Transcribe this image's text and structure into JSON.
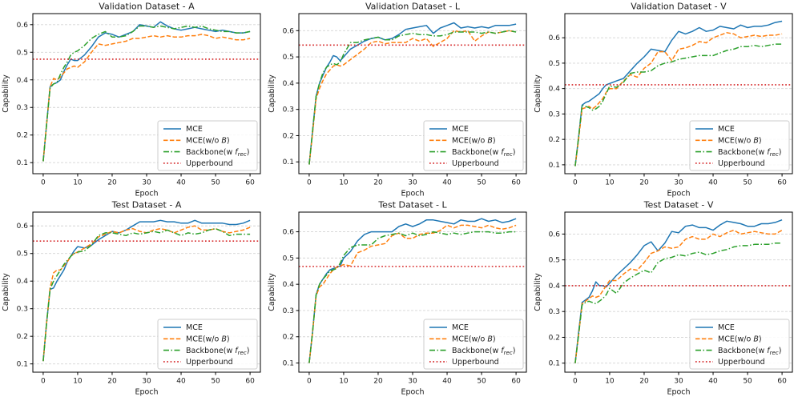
{
  "figure": {
    "background": "#ffffff",
    "columns": 3,
    "rows": 2
  },
  "colors": {
    "mce": "#1f77b4",
    "mce_wo_b": "#ff7f0e",
    "backbone": "#2ca02c",
    "upperbound": "#d62728",
    "grid": "#d4d4d4",
    "frame": "#000000",
    "text": "#1a1a1a",
    "legend_border": "#cccccc",
    "legend_bg": "#ffffff"
  },
  "legend": {
    "entries": [
      {
        "key": "mce",
        "label": "MCE",
        "style": "solid"
      },
      {
        "key": "mce_wo_b",
        "label": "MCE(w/o $B$)",
        "style": "dashed"
      },
      {
        "key": "backbone",
        "label": "Backbone(w $f_{rec}$)",
        "style": "dashdot"
      },
      {
        "key": "upperbound",
        "label": "Upperbound",
        "style": "dotted"
      }
    ]
  },
  "axes": {
    "xlabel": "Epoch",
    "ylabel": "Capability",
    "xticks": [
      0,
      10,
      20,
      30,
      40,
      50,
      60
    ],
    "yticks": [
      0.1,
      0.2,
      0.3,
      0.4,
      0.5,
      0.6
    ],
    "xlim": [
      -3,
      63
    ]
  },
  "chart_data": [
    {
      "type": "line",
      "id": "validation-a",
      "title": "Validation Dataset - A",
      "xlabel": "Epoch",
      "ylabel": "Capability",
      "ylim": [
        0.06,
        0.64
      ],
      "upperbound": 0.475,
      "x": [
        0,
        1,
        2,
        3,
        4,
        5,
        6,
        7,
        8,
        9,
        10,
        12,
        14,
        16,
        18,
        20,
        22,
        24,
        26,
        28,
        30,
        32,
        34,
        36,
        38,
        40,
        42,
        44,
        46,
        48,
        50,
        52,
        54,
        56,
        58,
        60
      ],
      "series": [
        {
          "name": "MCE",
          "color_key": "mce",
          "style": "solid",
          "values": [
            0.105,
            0.24,
            0.375,
            0.385,
            0.39,
            0.4,
            0.43,
            0.455,
            0.475,
            0.47,
            0.47,
            0.49,
            0.52,
            0.555,
            0.57,
            0.565,
            0.555,
            0.565,
            0.575,
            0.6,
            0.595,
            0.59,
            0.61,
            0.595,
            0.585,
            0.58,
            0.585,
            0.59,
            0.585,
            0.58,
            0.575,
            0.58,
            0.575,
            0.57,
            0.57,
            0.575
          ]
        },
        {
          "name": "MCE(w/o B)",
          "color_key": "mce_wo_b",
          "style": "dashed",
          "values": [
            0.105,
            0.24,
            0.375,
            0.405,
            0.4,
            0.41,
            0.425,
            0.44,
            0.445,
            0.45,
            0.445,
            0.465,
            0.5,
            0.53,
            0.525,
            0.53,
            0.535,
            0.54,
            0.55,
            0.55,
            0.555,
            0.56,
            0.555,
            0.56,
            0.555,
            0.555,
            0.56,
            0.56,
            0.565,
            0.56,
            0.55,
            0.555,
            0.55,
            0.545,
            0.545,
            0.55
          ]
        },
        {
          "name": "Backbone(w f_rec)",
          "color_key": "backbone",
          "style": "dashdot",
          "values": [
            0.105,
            0.24,
            0.37,
            0.385,
            0.39,
            0.42,
            0.445,
            0.465,
            0.49,
            0.5,
            0.505,
            0.525,
            0.55,
            0.565,
            0.575,
            0.555,
            0.555,
            0.56,
            0.575,
            0.595,
            0.595,
            0.59,
            0.595,
            0.59,
            0.585,
            0.59,
            0.595,
            0.59,
            0.595,
            0.585,
            0.58,
            0.575,
            0.575,
            0.57,
            0.57,
            0.575
          ]
        }
      ]
    },
    {
      "type": "line",
      "id": "validation-l",
      "title": "Validation Dataset - L",
      "xlabel": "Epoch",
      "ylabel": "Capability",
      "ylim": [
        0.055,
        0.665
      ],
      "upperbound": 0.545,
      "x": [
        0,
        1,
        2,
        3,
        4,
        5,
        6,
        7,
        8,
        9,
        10,
        12,
        14,
        16,
        18,
        20,
        22,
        24,
        26,
        28,
        30,
        32,
        34,
        36,
        38,
        40,
        42,
        44,
        46,
        48,
        50,
        52,
        54,
        56,
        58,
        60
      ],
      "series": [
        {
          "name": "MCE",
          "color_key": "mce",
          "style": "solid",
          "values": [
            0.09,
            0.22,
            0.35,
            0.4,
            0.43,
            0.46,
            0.48,
            0.505,
            0.5,
            0.485,
            0.5,
            0.53,
            0.545,
            0.56,
            0.57,
            0.575,
            0.565,
            0.57,
            0.585,
            0.605,
            0.61,
            0.615,
            0.62,
            0.59,
            0.61,
            0.62,
            0.63,
            0.61,
            0.615,
            0.61,
            0.615,
            0.61,
            0.62,
            0.62,
            0.62,
            0.625
          ]
        },
        {
          "name": "MCE(w/o B)",
          "color_key": "mce_wo_b",
          "style": "dashed",
          "values": [
            0.09,
            0.21,
            0.34,
            0.38,
            0.41,
            0.435,
            0.45,
            0.465,
            0.47,
            0.465,
            0.47,
            0.49,
            0.51,
            0.53,
            0.555,
            0.56,
            0.55,
            0.555,
            0.555,
            0.555,
            0.57,
            0.56,
            0.57,
            0.54,
            0.555,
            0.57,
            0.6,
            0.595,
            0.6,
            0.56,
            0.58,
            0.595,
            0.59,
            0.595,
            0.6,
            0.595
          ]
        },
        {
          "name": "Backbone(w f_rec)",
          "color_key": "backbone",
          "style": "dashdot",
          "values": [
            0.09,
            0.22,
            0.35,
            0.4,
            0.44,
            0.46,
            0.47,
            0.475,
            0.47,
            0.48,
            0.51,
            0.555,
            0.555,
            0.565,
            0.57,
            0.575,
            0.565,
            0.565,
            0.58,
            0.585,
            0.59,
            0.585,
            0.585,
            0.58,
            0.58,
            0.585,
            0.595,
            0.595,
            0.595,
            0.595,
            0.59,
            0.595,
            0.59,
            0.595,
            0.6,
            0.595
          ]
        }
      ]
    },
    {
      "type": "line",
      "id": "validation-v",
      "title": "Validation Dataset - V",
      "xlabel": "Epoch",
      "ylabel": "Capability",
      "ylim": [
        0.065,
        0.695
      ],
      "upperbound": 0.415,
      "x": [
        0,
        1,
        2,
        3,
        4,
        5,
        6,
        7,
        8,
        9,
        10,
        12,
        14,
        16,
        18,
        20,
        22,
        24,
        26,
        28,
        30,
        32,
        34,
        36,
        38,
        40,
        42,
        44,
        46,
        48,
        50,
        52,
        54,
        56,
        58,
        60
      ],
      "series": [
        {
          "name": "MCE",
          "color_key": "mce",
          "style": "solid",
          "values": [
            0.095,
            0.21,
            0.335,
            0.345,
            0.35,
            0.36,
            0.37,
            0.38,
            0.4,
            0.415,
            0.42,
            0.43,
            0.44,
            0.47,
            0.5,
            0.525,
            0.555,
            0.55,
            0.545,
            0.59,
            0.625,
            0.615,
            0.625,
            0.64,
            0.625,
            0.63,
            0.645,
            0.64,
            0.635,
            0.65,
            0.64,
            0.645,
            0.645,
            0.65,
            0.66,
            0.665
          ]
        },
        {
          "name": "MCE(w/o B)",
          "color_key": "mce_wo_b",
          "style": "dashed",
          "values": [
            0.095,
            0.2,
            0.32,
            0.325,
            0.33,
            0.32,
            0.33,
            0.345,
            0.36,
            0.385,
            0.4,
            0.4,
            0.43,
            0.455,
            0.445,
            0.48,
            0.5,
            0.545,
            0.545,
            0.51,
            0.555,
            0.56,
            0.57,
            0.585,
            0.58,
            0.6,
            0.61,
            0.62,
            0.615,
            0.6,
            0.605,
            0.61,
            0.605,
            0.61,
            0.61,
            0.615
          ]
        },
        {
          "name": "Backbone(w f_rec)",
          "color_key": "backbone",
          "style": "dashdot",
          "values": [
            0.095,
            0.21,
            0.335,
            0.33,
            0.325,
            0.315,
            0.32,
            0.33,
            0.35,
            0.38,
            0.41,
            0.405,
            0.425,
            0.46,
            0.465,
            0.465,
            0.47,
            0.49,
            0.5,
            0.505,
            0.515,
            0.52,
            0.525,
            0.53,
            0.53,
            0.53,
            0.54,
            0.55,
            0.555,
            0.565,
            0.565,
            0.57,
            0.565,
            0.57,
            0.575,
            0.575
          ]
        }
      ]
    },
    {
      "type": "line",
      "id": "test-a",
      "title": "Test Dataset - A",
      "xlabel": "Epoch",
      "ylabel": "Capability",
      "ylim": [
        0.07,
        0.65
      ],
      "upperbound": 0.545,
      "x": [
        0,
        1,
        2,
        3,
        4,
        5,
        6,
        7,
        8,
        9,
        10,
        12,
        14,
        16,
        18,
        20,
        22,
        24,
        26,
        28,
        30,
        32,
        34,
        36,
        38,
        40,
        42,
        44,
        46,
        48,
        50,
        52,
        54,
        56,
        58,
        60
      ],
      "series": [
        {
          "name": "MCE",
          "color_key": "mce",
          "style": "solid",
          "values": [
            0.11,
            0.25,
            0.37,
            0.375,
            0.4,
            0.42,
            0.44,
            0.47,
            0.49,
            0.51,
            0.525,
            0.52,
            0.53,
            0.55,
            0.565,
            0.58,
            0.575,
            0.585,
            0.6,
            0.615,
            0.615,
            0.615,
            0.62,
            0.615,
            0.615,
            0.61,
            0.61,
            0.62,
            0.61,
            0.61,
            0.61,
            0.61,
            0.605,
            0.605,
            0.61,
            0.62
          ]
        },
        {
          "name": "MCE(w/o B)",
          "color_key": "mce_wo_b",
          "style": "dashed",
          "values": [
            0.11,
            0.25,
            0.375,
            0.43,
            0.44,
            0.44,
            0.455,
            0.47,
            0.49,
            0.5,
            0.505,
            0.52,
            0.535,
            0.56,
            0.57,
            0.58,
            0.575,
            0.585,
            0.59,
            0.58,
            0.575,
            0.585,
            0.59,
            0.585,
            0.575,
            0.585,
            0.595,
            0.6,
            0.585,
            0.585,
            0.59,
            0.58,
            0.575,
            0.58,
            0.585,
            0.595
          ]
        },
        {
          "name": "Backbone(w f_rec)",
          "color_key": "backbone",
          "style": "dashdot",
          "values": [
            0.11,
            0.25,
            0.37,
            0.4,
            0.42,
            0.44,
            0.46,
            0.475,
            0.49,
            0.5,
            0.505,
            0.51,
            0.53,
            0.565,
            0.575,
            0.575,
            0.57,
            0.565,
            0.575,
            0.57,
            0.575,
            0.58,
            0.575,
            0.585,
            0.575,
            0.565,
            0.575,
            0.57,
            0.575,
            0.585,
            0.59,
            0.58,
            0.565,
            0.57,
            0.57,
            0.57
          ]
        }
      ]
    },
    {
      "type": "line",
      "id": "test-l",
      "title": "Test Dataset - L",
      "xlabel": "Epoch",
      "ylabel": "Capability",
      "ylim": [
        0.065,
        0.675
      ],
      "upperbound": 0.468,
      "x": [
        0,
        1,
        2,
        3,
        4,
        5,
        6,
        7,
        8,
        9,
        10,
        12,
        14,
        16,
        18,
        20,
        22,
        24,
        26,
        28,
        30,
        32,
        34,
        36,
        38,
        40,
        42,
        44,
        46,
        48,
        50,
        52,
        54,
        56,
        58,
        60
      ],
      "series": [
        {
          "name": "MCE",
          "color_key": "mce",
          "style": "solid",
          "values": [
            0.1,
            0.22,
            0.36,
            0.4,
            0.42,
            0.44,
            0.455,
            0.46,
            0.465,
            0.47,
            0.5,
            0.525,
            0.565,
            0.59,
            0.6,
            0.6,
            0.6,
            0.6,
            0.62,
            0.63,
            0.62,
            0.63,
            0.645,
            0.645,
            0.64,
            0.635,
            0.63,
            0.645,
            0.64,
            0.64,
            0.65,
            0.64,
            0.645,
            0.635,
            0.64,
            0.65
          ]
        },
        {
          "name": "MCE(w/o B)",
          "color_key": "mce_wo_b",
          "style": "dashed",
          "values": [
            0.1,
            0.22,
            0.355,
            0.39,
            0.4,
            0.42,
            0.44,
            0.455,
            0.465,
            0.47,
            0.475,
            0.47,
            0.52,
            0.53,
            0.545,
            0.55,
            0.555,
            0.585,
            0.595,
            0.575,
            0.575,
            0.59,
            0.595,
            0.595,
            0.605,
            0.625,
            0.615,
            0.625,
            0.625,
            0.62,
            0.615,
            0.625,
            0.615,
            0.61,
            0.615,
            0.625
          ]
        },
        {
          "name": "Backbone(w f_rec)",
          "color_key": "backbone",
          "style": "dashdot",
          "values": [
            0.1,
            0.22,
            0.36,
            0.4,
            0.42,
            0.435,
            0.45,
            0.455,
            0.46,
            0.48,
            0.51,
            0.54,
            0.55,
            0.55,
            0.55,
            0.575,
            0.585,
            0.59,
            0.595,
            0.585,
            0.595,
            0.585,
            0.59,
            0.6,
            0.595,
            0.59,
            0.595,
            0.59,
            0.595,
            0.6,
            0.6,
            0.6,
            0.595,
            0.595,
            0.6,
            0.6
          ]
        }
      ]
    },
    {
      "type": "line",
      "id": "test-v",
      "title": "Test Dataset - V",
      "xlabel": "Epoch",
      "ylabel": "Capability",
      "ylim": [
        0.065,
        0.685
      ],
      "upperbound": 0.4,
      "x": [
        0,
        1,
        2,
        3,
        4,
        5,
        6,
        7,
        8,
        9,
        10,
        12,
        14,
        16,
        18,
        20,
        22,
        24,
        26,
        28,
        30,
        32,
        34,
        36,
        38,
        40,
        42,
        44,
        46,
        48,
        50,
        52,
        54,
        56,
        58,
        60
      ],
      "series": [
        {
          "name": "MCE",
          "color_key": "mce",
          "style": "solid",
          "values": [
            0.1,
            0.22,
            0.335,
            0.345,
            0.355,
            0.38,
            0.415,
            0.4,
            0.4,
            0.395,
            0.41,
            0.44,
            0.465,
            0.49,
            0.52,
            0.555,
            0.57,
            0.535,
            0.565,
            0.61,
            0.605,
            0.63,
            0.635,
            0.625,
            0.625,
            0.615,
            0.635,
            0.65,
            0.645,
            0.64,
            0.63,
            0.63,
            0.64,
            0.64,
            0.645,
            0.655
          ]
        },
        {
          "name": "MCE(w/o B)",
          "color_key": "mce_wo_b",
          "style": "dashed",
          "values": [
            0.1,
            0.21,
            0.33,
            0.34,
            0.35,
            0.36,
            0.355,
            0.36,
            0.38,
            0.4,
            0.42,
            0.42,
            0.445,
            0.465,
            0.46,
            0.49,
            0.525,
            0.535,
            0.55,
            0.545,
            0.55,
            0.58,
            0.59,
            0.58,
            0.58,
            0.6,
            0.59,
            0.605,
            0.615,
            0.6,
            0.605,
            0.61,
            0.605,
            0.6,
            0.6,
            0.615
          ]
        },
        {
          "name": "Backbone(w f_rec)",
          "color_key": "backbone",
          "style": "dashdot",
          "values": [
            0.1,
            0.21,
            0.325,
            0.335,
            0.34,
            0.335,
            0.33,
            0.34,
            0.35,
            0.365,
            0.39,
            0.37,
            0.41,
            0.43,
            0.445,
            0.46,
            0.45,
            0.49,
            0.505,
            0.51,
            0.52,
            0.515,
            0.525,
            0.53,
            0.52,
            0.525,
            0.535,
            0.54,
            0.55,
            0.555,
            0.555,
            0.56,
            0.56,
            0.56,
            0.565,
            0.565
          ]
        }
      ]
    }
  ]
}
